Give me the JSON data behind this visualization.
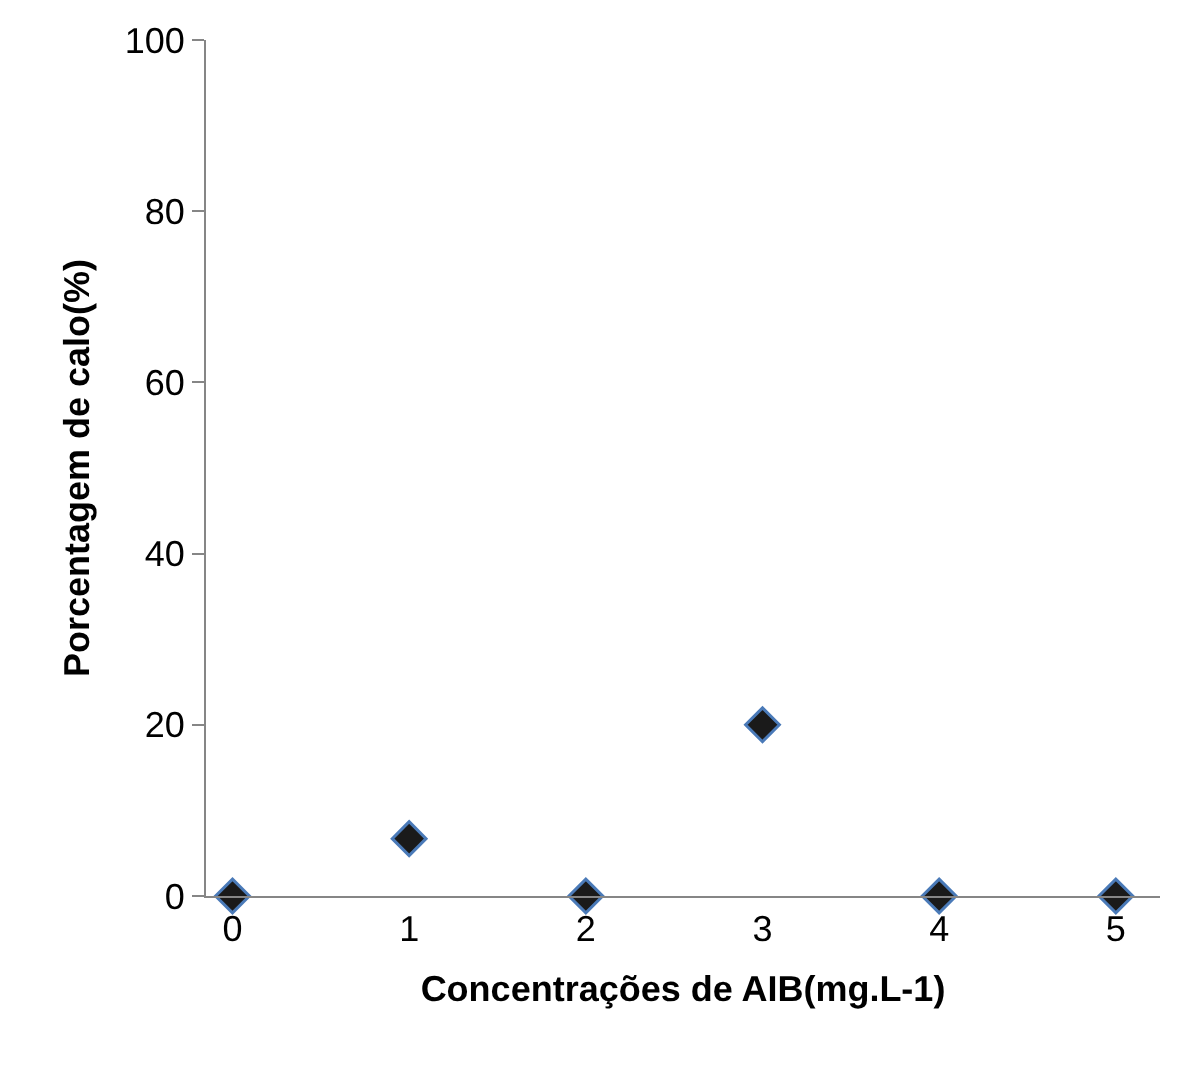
{
  "chart_data": {
    "type": "scatter",
    "xlabel": "Concentrações de AIB(mg.L-1)",
    "ylabel": "Porcentagem de calo(%)",
    "x": [
      0,
      1,
      2,
      3,
      4,
      5
    ],
    "series": [
      {
        "color": "#1a1a1a",
        "values": [
          0,
          6.7,
          0,
          20,
          0,
          0
        ]
      }
    ],
    "xlim": [
      -0.15,
      5.25
    ],
    "xticks": [
      0,
      1,
      2,
      3,
      4,
      5
    ],
    "ylim": [
      0,
      100
    ],
    "yticks": [
      0,
      20,
      40,
      60,
      80,
      100
    ],
    "grid": false,
    "marker": "diamond"
  }
}
